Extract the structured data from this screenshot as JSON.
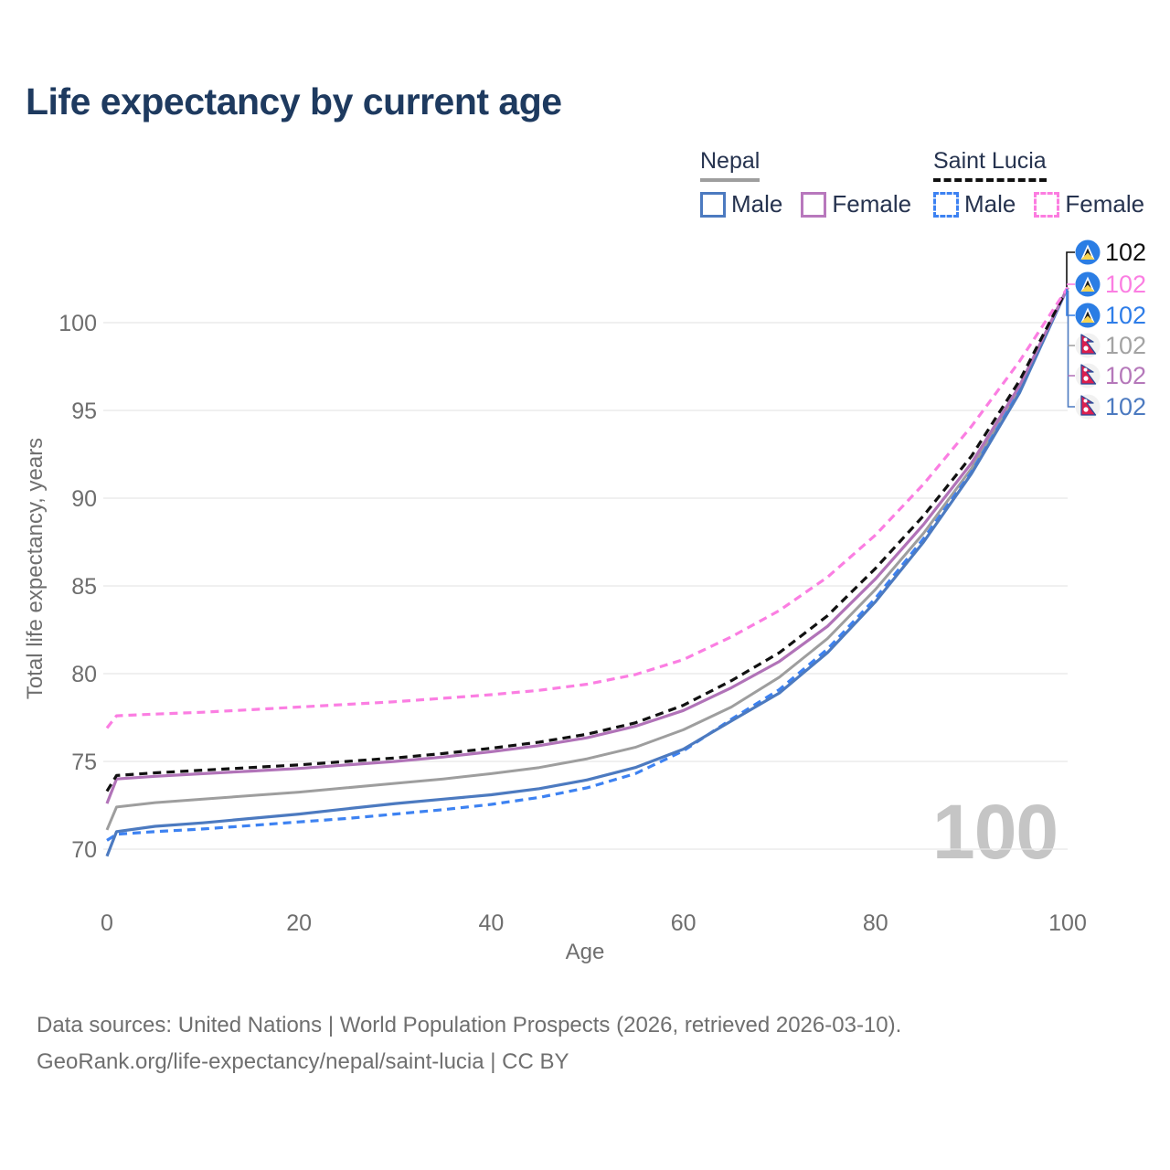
{
  "title": "Life expectancy by current age",
  "watermark": "100",
  "legend": {
    "groups": [
      {
        "name": "Nepal",
        "underline_style": "solid",
        "underline_color": "#9e9e9e",
        "items": [
          {
            "label": "Male",
            "color": "#4c7ac0",
            "style": "solid"
          },
          {
            "label": "Female",
            "color": "#b878bd",
            "style": "solid"
          }
        ]
      },
      {
        "name": "Saint Lucia",
        "underline_style": "dashed",
        "underline_color": "#111111",
        "items": [
          {
            "label": "Male",
            "color": "#3d82f2",
            "style": "dashed"
          },
          {
            "label": "Female",
            "color": "#fc7ce0",
            "style": "dashed"
          }
        ]
      }
    ]
  },
  "end_labels": [
    {
      "flag": "saint-lucia",
      "series": "Saint Lucia",
      "value": "102",
      "color": "#111111"
    },
    {
      "flag": "saint-lucia",
      "series": "Saint Lucia Female",
      "value": "102",
      "color": "#fb7ee2"
    },
    {
      "flag": "saint-lucia",
      "series": "Saint Lucia Male",
      "value": "102",
      "color": "#2e7de8"
    },
    {
      "flag": "nepal",
      "series": "Nepal",
      "value": "102",
      "color": "#a3a3a3"
    },
    {
      "flag": "nepal",
      "series": "Nepal Female",
      "value": "102",
      "color": "#b578ba"
    },
    {
      "flag": "nepal",
      "series": "Nepal Male",
      "value": "102",
      "color": "#4c7ac0"
    }
  ],
  "source_line1": "Data sources: United Nations | World Population Prospects (2026, retrieved 2026-03-10).",
  "source_line2": "GeoRank.org/life-expectancy/nepal/saint-lucia | CC BY",
  "chart_data": {
    "type": "line",
    "title": "Life expectancy by current age",
    "xlabel": "Age",
    "ylabel": "Total life expectancy, years",
    "xlim": [
      0,
      100
    ],
    "ylim": [
      68,
      103
    ],
    "xticks": [
      0,
      20,
      40,
      60,
      80,
      100
    ],
    "yticks": [
      70,
      75,
      80,
      85,
      90,
      95,
      100
    ],
    "grid": "horizontal-only",
    "legend_position": "top-right",
    "x": [
      0,
      1,
      5,
      10,
      15,
      20,
      25,
      30,
      35,
      40,
      45,
      50,
      55,
      60,
      65,
      70,
      75,
      80,
      85,
      90,
      95,
      100
    ],
    "series": [
      {
        "name": "Nepal",
        "country": "Nepal",
        "sex": "Both",
        "style": "solid",
        "color": "#9e9e9e",
        "width": 3,
        "values": [
          71.1,
          72.4,
          72.65,
          72.85,
          73.05,
          73.25,
          73.5,
          73.75,
          74.0,
          74.3,
          74.65,
          75.15,
          75.8,
          76.8,
          78.1,
          79.8,
          82.0,
          84.8,
          88.0,
          91.7,
          96.3,
          102
        ]
      },
      {
        "name": "Saint Lucia Male",
        "country": "Saint Lucia",
        "sex": "Male",
        "style": "dashed",
        "color": "#3d82f2",
        "width": 3.2,
        "values": [
          70.5,
          70.85,
          71.0,
          71.15,
          71.35,
          71.55,
          71.75,
          72.0,
          72.25,
          72.55,
          72.95,
          73.5,
          74.3,
          75.6,
          77.4,
          79.1,
          81.4,
          84.3,
          87.7,
          91.5,
          96.1,
          102
        ]
      },
      {
        "name": "Nepal Male",
        "country": "Nepal",
        "sex": "Male",
        "style": "solid",
        "color": "#4c7ac0",
        "width": 3.2,
        "values": [
          69.6,
          71.0,
          71.3,
          71.5,
          71.75,
          72.0,
          72.3,
          72.6,
          72.85,
          73.1,
          73.45,
          73.95,
          74.65,
          75.7,
          77.3,
          78.9,
          81.2,
          84.1,
          87.5,
          91.4,
          96.0,
          102
        ]
      },
      {
        "name": "Nepal Female",
        "country": "Nepal",
        "sex": "Female",
        "style": "solid",
        "color": "#b173b8",
        "width": 3.2,
        "values": [
          72.6,
          74.0,
          74.15,
          74.3,
          74.45,
          74.6,
          74.8,
          75.0,
          75.25,
          75.55,
          75.9,
          76.35,
          77.0,
          77.9,
          79.2,
          80.7,
          82.7,
          85.4,
          88.5,
          92.0,
          96.4,
          102
        ]
      },
      {
        "name": "Saint Lucia",
        "country": "Saint Lucia",
        "sex": "Both",
        "style": "dashed",
        "color": "#111111",
        "width": 3.2,
        "values": [
          73.3,
          74.2,
          74.35,
          74.5,
          74.65,
          74.8,
          75.0,
          75.2,
          75.45,
          75.75,
          76.1,
          76.55,
          77.2,
          78.2,
          79.6,
          81.2,
          83.3,
          86.0,
          89.0,
          92.4,
          96.7,
          102
        ]
      },
      {
        "name": "Saint Lucia Female",
        "country": "Saint Lucia",
        "sex": "Female",
        "style": "dashed",
        "color": "#fb7ee2",
        "width": 3.2,
        "values": [
          76.9,
          77.6,
          77.7,
          77.8,
          77.95,
          78.1,
          78.25,
          78.4,
          78.6,
          78.8,
          79.05,
          79.4,
          79.95,
          80.8,
          82.1,
          83.6,
          85.5,
          87.9,
          90.8,
          94.1,
          97.8,
          102
        ]
      }
    ],
    "end_value_labels": [
      {
        "series": "Saint Lucia",
        "value": 102
      },
      {
        "series": "Saint Lucia Female",
        "value": 102
      },
      {
        "series": "Saint Lucia Male",
        "value": 102
      },
      {
        "series": "Nepal",
        "value": 102
      },
      {
        "series": "Nepal Female",
        "value": 102
      },
      {
        "series": "Nepal Male",
        "value": 102
      }
    ]
  }
}
